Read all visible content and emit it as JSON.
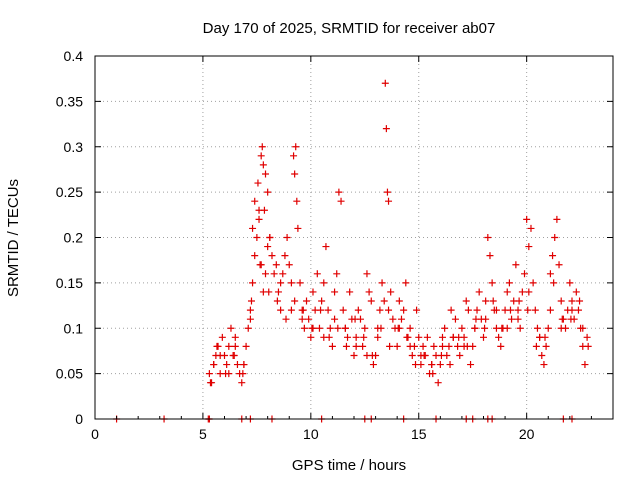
{
  "chart_data": {
    "type": "scatter",
    "title": "Day 170 of 2025, SRMTID for receiver ab07",
    "xlabel": "GPS time / hours",
    "ylabel": "SRMTID / TECUs",
    "xlim": [
      0,
      24
    ],
    "ylim": [
      0,
      0.4
    ],
    "xticks": [
      0,
      5,
      10,
      15,
      20
    ],
    "xtick_labels": [
      "0",
      "5",
      "10",
      "15",
      "20"
    ],
    "yticks": [
      0,
      0.05,
      0.1,
      0.15,
      0.2,
      0.25,
      0.3,
      0.35,
      0.4
    ],
    "ytick_labels": [
      "0",
      "0.05",
      "0.1",
      "0.15",
      "0.2",
      "0.25",
      "0.3",
      "0.35",
      "0.4"
    ],
    "grid": true,
    "marker": "+",
    "color": "#e00000",
    "series": [
      {
        "name": "SRMTID",
        "x": [
          1.0,
          3.2,
          5.25,
          5.3,
          6.8,
          7.2,
          8.2,
          10.5,
          12.5,
          12.8,
          14.3,
          15.8,
          17.2,
          17.5,
          18.2,
          18.4,
          21.7,
          22.1,
          5.3,
          5.4,
          5.5,
          5.6,
          5.7,
          5.8,
          5.9,
          6.0,
          6.1,
          6.2,
          6.3,
          6.4,
          6.5,
          6.6,
          6.7,
          6.8,
          6.9,
          7.0,
          7.1,
          7.2,
          7.3,
          7.4,
          7.5,
          7.6,
          7.7,
          7.8,
          7.9,
          8.0,
          7.3,
          7.4,
          7.55,
          7.7,
          7.75,
          7.8,
          7.85,
          7.9,
          8.0,
          8.1,
          8.2,
          8.3,
          8.4,
          8.5,
          8.6,
          8.7,
          8.8,
          8.9,
          9.0,
          9.1,
          9.2,
          9.25,
          9.3,
          9.35,
          9.4,
          9.5,
          9.6,
          9.7,
          9.8,
          9.9,
          10.0,
          10.1,
          10.2,
          10.3,
          10.4,
          10.5,
          10.6,
          10.7,
          10.8,
          10.9,
          11.0,
          11.1,
          11.2,
          11.3,
          11.4,
          11.5,
          11.6,
          11.7,
          11.8,
          11.9,
          12.0,
          12.1,
          12.2,
          12.3,
          12.4,
          12.5,
          12.6,
          12.7,
          12.8,
          12.9,
          13.0,
          13.1,
          13.2,
          13.3,
          13.4,
          13.45,
          13.5,
          13.55,
          13.6,
          13.7,
          13.8,
          13.9,
          14.0,
          14.1,
          14.2,
          14.3,
          14.4,
          14.5,
          14.6,
          14.7,
          14.8,
          14.9,
          15.0,
          15.1,
          15.2,
          15.3,
          15.4,
          15.5,
          15.6,
          15.7,
          15.8,
          15.9,
          16.0,
          16.1,
          16.2,
          16.3,
          16.4,
          16.5,
          16.6,
          16.7,
          16.8,
          16.9,
          17.0,
          17.1,
          17.2,
          17.3,
          17.4,
          17.5,
          17.6,
          17.7,
          17.8,
          17.9,
          18.0,
          18.1,
          18.2,
          18.3,
          18.4,
          18.5,
          18.6,
          18.7,
          18.8,
          18.9,
          19.0,
          19.1,
          19.2,
          19.3,
          19.4,
          19.5,
          19.6,
          19.7,
          19.8,
          19.9,
          20.0,
          20.1,
          20.2,
          20.3,
          20.4,
          20.5,
          20.6,
          20.7,
          20.8,
          20.9,
          21.0,
          21.1,
          21.2,
          21.3,
          21.4,
          21.5,
          21.6,
          21.7,
          21.8,
          21.9,
          22.0,
          22.1,
          22.2,
          22.3,
          22.4,
          22.5,
          22.6,
          22.7,
          22.8,
          5.5,
          5.8,
          6.2,
          6.5,
          6.9,
          7.2,
          7.6,
          8.1,
          8.6,
          9.1,
          9.6,
          10.1,
          10.6,
          11.1,
          11.6,
          12.1,
          12.6,
          13.1,
          13.6,
          14.1,
          14.6,
          15.1,
          15.6,
          16.1,
          16.6,
          17.1,
          17.6,
          18.1,
          18.6,
          19.1,
          19.6,
          20.1,
          20.6,
          21.1,
          21.6,
          22.1,
          22.6,
          5.35,
          5.65,
          6.05,
          6.45,
          6.85,
          7.25,
          7.65,
          8.05,
          8.45,
          8.85,
          9.25,
          9.65,
          10.05,
          10.45,
          10.85,
          11.25,
          11.65,
          12.05,
          12.45,
          12.85,
          13.25,
          13.65,
          14.05,
          14.45,
          14.85,
          15.25,
          15.65,
          16.05,
          16.45,
          16.85,
          17.25,
          17.65,
          18.05,
          18.45,
          18.85,
          19.25,
          19.65,
          20.05,
          20.45,
          20.85,
          21.25,
          21.65,
          22.05,
          22.45,
          22.85
        ],
        "y": [
          0.0,
          0.0,
          0.0,
          0.0,
          0.0,
          0.0,
          0.0,
          0.0,
          0.0,
          0.0,
          0.0,
          0.0,
          0.0,
          0.0,
          0.0,
          0.0,
          0.0,
          0.0,
          0.05,
          0.04,
          0.06,
          0.07,
          0.08,
          0.05,
          0.09,
          0.07,
          0.06,
          0.08,
          0.1,
          0.07,
          0.09,
          0.06,
          0.05,
          0.04,
          0.06,
          0.08,
          0.1,
          0.12,
          0.15,
          0.18,
          0.2,
          0.22,
          0.17,
          0.14,
          0.16,
          0.19,
          0.21,
          0.24,
          0.26,
          0.29,
          0.3,
          0.28,
          0.23,
          0.27,
          0.25,
          0.2,
          0.18,
          0.16,
          0.17,
          0.14,
          0.12,
          0.16,
          0.18,
          0.2,
          0.17,
          0.15,
          0.29,
          0.27,
          0.3,
          0.24,
          0.21,
          0.15,
          0.12,
          0.1,
          0.13,
          0.11,
          0.09,
          0.14,
          0.12,
          0.16,
          0.1,
          0.13,
          0.15,
          0.19,
          0.12,
          0.1,
          0.08,
          0.14,
          0.16,
          0.25,
          0.24,
          0.12,
          0.1,
          0.09,
          0.14,
          0.11,
          0.07,
          0.09,
          0.12,
          0.11,
          0.08,
          0.1,
          0.16,
          0.14,
          0.13,
          0.06,
          0.07,
          0.09,
          0.12,
          0.15,
          0.13,
          0.37,
          0.32,
          0.25,
          0.24,
          0.14,
          0.11,
          0.1,
          0.08,
          0.13,
          0.11,
          0.12,
          0.15,
          0.09,
          0.1,
          0.07,
          0.08,
          0.12,
          0.09,
          0.06,
          0.08,
          0.07,
          0.09,
          0.05,
          0.06,
          0.08,
          0.07,
          0.04,
          0.06,
          0.09,
          0.1,
          0.07,
          0.08,
          0.12,
          0.09,
          0.11,
          0.08,
          0.07,
          0.1,
          0.09,
          0.13,
          0.12,
          0.06,
          0.08,
          0.1,
          0.12,
          0.14,
          0.11,
          0.09,
          0.13,
          0.2,
          0.18,
          0.15,
          0.12,
          0.1,
          0.09,
          0.08,
          0.1,
          0.12,
          0.14,
          0.15,
          0.11,
          0.13,
          0.17,
          0.12,
          0.1,
          0.14,
          0.16,
          0.22,
          0.19,
          0.21,
          0.15,
          0.12,
          0.1,
          0.09,
          0.07,
          0.06,
          0.08,
          0.1,
          0.12,
          0.18,
          0.2,
          0.22,
          0.17,
          0.13,
          0.11,
          0.1,
          0.12,
          0.15,
          0.13,
          0.11,
          0.14,
          0.12,
          0.1,
          0.08,
          0.06,
          0.09,
          0.06,
          0.07,
          0.05,
          0.08,
          0.06,
          0.11,
          0.23,
          0.2,
          0.15,
          0.12,
          0.11,
          0.1,
          0.09,
          0.11,
          0.1,
          0.08,
          0.07,
          0.1,
          0.12,
          0.1,
          0.08,
          0.07,
          0.06,
          0.08,
          0.09,
          0.08,
          0.1,
          0.11,
          0.12,
          0.1,
          0.11,
          0.14,
          0.09,
          0.16,
          0.1,
          0.12,
          0.1,
          0.04,
          0.08,
          0.05,
          0.07,
          0.05,
          0.13,
          0.17,
          0.14,
          0.13,
          0.11,
          0.13,
          0.12,
          0.1,
          0.12,
          0.09,
          0.1,
          0.08,
          0.11,
          0.09,
          0.07,
          0.1,
          0.08,
          0.1,
          0.09,
          0.06,
          0.07,
          0.05,
          0.07,
          0.06,
          0.09,
          0.08,
          0.11,
          0.1,
          0.13,
          0.1,
          0.12,
          0.13,
          0.12,
          0.08,
          0.09,
          0.15,
          0.11,
          0.11,
          0.13,
          0.08
        ]
      }
    ]
  }
}
